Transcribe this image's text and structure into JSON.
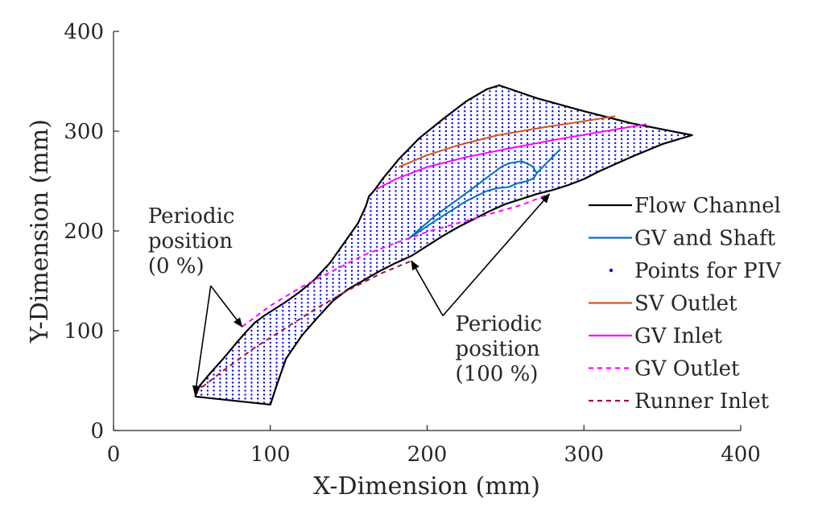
{
  "chart_data": {
    "type": "line",
    "title": "",
    "xlabel": "X-Dimension (mm)",
    "ylabel": "Y-Dimension (mm)",
    "xlim": [
      0,
      400
    ],
    "ylim": [
      0,
      400
    ],
    "xticks": [
      0,
      100,
      200,
      300,
      400
    ],
    "yticks": [
      0,
      100,
      200,
      300,
      400
    ],
    "grid": false,
    "legend_position": "right",
    "colors": {
      "flow_channel": "#000000",
      "gv_shaft": "#0072BD",
      "piv_points": "#0000FF",
      "sv_outlet": "#D95319",
      "gv_inlet": "#FF00FF",
      "gv_outlet": "#FF00FF",
      "runner_inlet": "#A2142F"
    },
    "series": [
      {
        "name": "Flow Channel",
        "style": "solid",
        "x": [
          52,
          55,
          62,
          70,
          78,
          84,
          90,
          96,
          102,
          110,
          118,
          128,
          138,
          148,
          156,
          161,
          163,
          166,
          172,
          182,
          195,
          210,
          225,
          238,
          246,
          270,
          300,
          330,
          369,
          350,
          330,
          310,
          300,
          290,
          280,
          270,
          260,
          250,
          240,
          230,
          220,
          210,
          200,
          190,
          180,
          170,
          160,
          150,
          140,
          130,
          120,
          110,
          104,
          100,
          52
        ],
        "y": [
          34,
          45,
          58,
          72,
          87,
          98,
          108,
          115,
          121,
          129,
          138,
          151,
          168,
          190,
          208,
          225,
          235,
          240,
          253,
          272,
          293,
          312,
          330,
          342,
          346,
          333,
          320,
          308,
          296,
          287,
          274,
          260,
          252,
          246,
          241,
          237,
          232,
          227,
          220,
          212,
          204,
          195,
          185,
          175,
          168,
          160,
          151,
          142,
          130,
          113,
          95,
          72,
          45,
          26,
          34
        ]
      },
      {
        "name": "GV and Shaft",
        "style": "solid",
        "x": [
          188,
          205,
          225,
          242,
          248,
          253,
          260,
          263,
          267,
          270,
          268,
          264,
          258,
          252,
          245,
          238,
          225,
          205,
          188
        ],
        "y": [
          192,
          215,
          238,
          258,
          265,
          268,
          270,
          268,
          265,
          258,
          253,
          250,
          248,
          244,
          243,
          240,
          230,
          210,
          192
        ]
      },
      {
        "name": "GV and Shaft",
        "style": "solid",
        "x": [
          270,
          278,
          285
        ],
        "y": [
          258,
          271,
          282
        ]
      },
      {
        "name": "SV Outlet",
        "style": "solid",
        "x": [
          182,
          200,
          220,
          245,
          275,
          300,
          320
        ],
        "y": [
          264,
          276,
          286,
          296,
          304,
          310,
          315
        ]
      },
      {
        "name": "GV Inlet",
        "style": "solid",
        "x": [
          168,
          180,
          200,
          225,
          250,
          280,
          310,
          340
        ],
        "y": [
          242,
          252,
          264,
          274,
          282,
          291,
          299,
          307
        ]
      },
      {
        "name": "GV Outlet",
        "style": "dashed",
        "x": [
          82,
          100,
          120,
          140,
          160,
          180,
          200,
          220,
          240,
          260,
          278
        ],
        "y": [
          104,
          125,
          144,
          160,
          176,
          188,
          199,
          208,
          217,
          226,
          237
        ]
      },
      {
        "name": "Runner Inlet",
        "style": "dashed",
        "x": [
          52,
          70,
          90,
          110,
          130,
          150,
          170,
          190
        ],
        "y": [
          38,
          60,
          83,
          103,
          123,
          141,
          157,
          170
        ]
      }
    ],
    "scatter": {
      "name": "Points for PIV",
      "spacing_mm": 4
    },
    "annotations": [
      {
        "lines": [
          "Periodic",
          "position",
          "(0 %)"
        ],
        "text_at": [
          22,
          208
        ],
        "arrows_to": [
          [
            82,
            104
          ],
          [
            52,
            36
          ]
        ],
        "arrow_from": [
          62,
          145
        ]
      },
      {
        "lines": [
          "Periodic",
          "position",
          "(100 %)"
        ],
        "text_at": [
          218,
          100
        ],
        "arrows_to": [
          [
            190,
            170
          ],
          [
            278,
            237
          ]
        ],
        "arrow_from": [
          210,
          115
        ]
      }
    ]
  }
}
